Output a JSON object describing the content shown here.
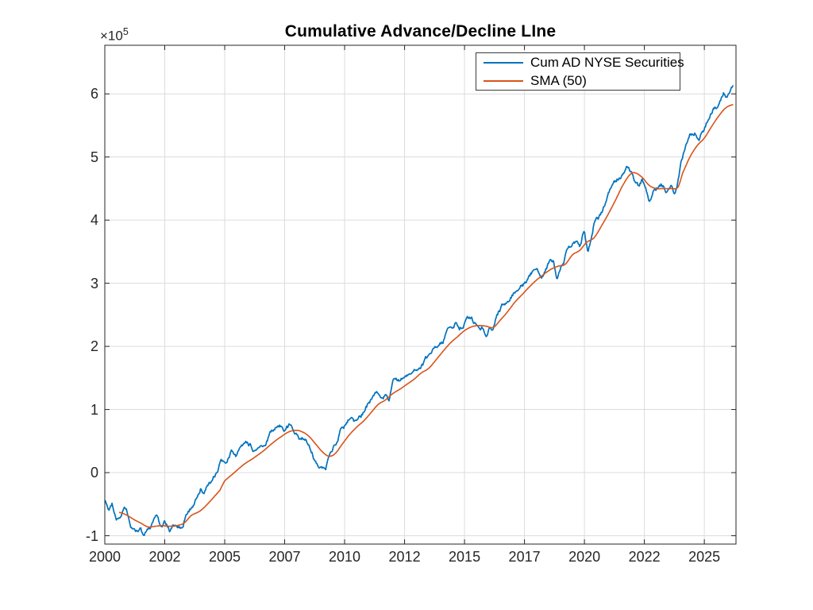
{
  "figure": {
    "background": "#ffffff",
    "axis_color": "#262626",
    "grid_color": "#dcdcdc",
    "y_exponent_base": "×10",
    "y_exponent_power": "5"
  },
  "legend": {
    "entries": [
      {
        "label": "Cum AD NYSE Securities",
        "color": "#0072BD"
      },
      {
        "label": "SMA (50)",
        "color": "#D95319"
      }
    ]
  },
  "chart_data": {
    "type": "line",
    "title": "Cumulative Advance/Decline LIne",
    "xlabel": "",
    "ylabel": "",
    "y_units": "×10^5",
    "grid": true,
    "legend_position": "northeast-inside",
    "xlim": [
      2000,
      2026.32
    ],
    "ylim": [
      -1.132,
      6.77
    ],
    "x_ticks": [
      2000,
      2002.5,
      2005,
      2007.5,
      2010,
      2012.5,
      2015,
      2017.5,
      2020,
      2022.5,
      2025
    ],
    "x_tick_labels": [
      "2000",
      "2002",
      "2005",
      "2007",
      "2010",
      "2012",
      "2015",
      "2017",
      "2020",
      "2022",
      "2025"
    ],
    "y_ticks": [
      -1,
      0,
      1,
      2,
      3,
      4,
      5,
      6
    ],
    "y_tick_labels": [
      "-1",
      "0",
      "1",
      "2",
      "3",
      "4",
      "5",
      "6"
    ],
    "series": [
      {
        "name": "Cum AD NYSE Securities",
        "color": "#0072BD",
        "line_width": 1.7,
        "smooth": false,
        "noise_amplitude": 0.03,
        "x": [
          2000.0,
          2000.15,
          2000.3,
          2000.5,
          2000.7,
          2000.9,
          2001.1,
          2001.3,
          2001.5,
          2001.65,
          2001.8,
          2002.0,
          2002.15,
          2002.3,
          2002.5,
          2002.7,
          2002.9,
          2003.1,
          2003.25,
          2003.4,
          2003.6,
          2003.8,
          2004.0,
          2004.15,
          2004.35,
          2004.6,
          2004.85,
          2005.1,
          2005.3,
          2005.5,
          2005.65,
          2005.85,
          2006.1,
          2006.3,
          2006.5,
          2006.7,
          2006.9,
          2007.1,
          2007.3,
          2007.5,
          2007.7,
          2007.9,
          2008.1,
          2008.3,
          2008.5,
          2008.7,
          2008.9,
          2009.05,
          2009.2,
          2009.35,
          2009.5,
          2009.7,
          2009.85,
          2010.0,
          2010.2,
          2010.45,
          2010.7,
          2010.9,
          2011.1,
          2011.3,
          2011.5,
          2011.7,
          2011.85,
          2012.05,
          2012.3,
          2012.5,
          2012.8,
          2013.1,
          2013.3,
          2013.5,
          2013.7,
          2013.9,
          2014.1,
          2014.3,
          2014.45,
          2014.65,
          2014.8,
          2015.0,
          2015.2,
          2015.4,
          2015.6,
          2015.75,
          2015.9,
          2016.05,
          2016.15,
          2016.35,
          2016.6,
          2016.8,
          2017.0,
          2017.2,
          2017.5,
          2017.8,
          2018.0,
          2018.2,
          2018.45,
          2018.7,
          2018.85,
          2019.0,
          2019.2,
          2019.35,
          2019.5,
          2019.65,
          2019.8,
          2020.0,
          2020.15,
          2020.25,
          2020.4,
          2020.6,
          2020.8,
          2021.0,
          2021.2,
          2021.4,
          2021.6,
          2021.8,
          2021.95,
          2022.1,
          2022.25,
          2022.4,
          2022.55,
          2022.7,
          2022.85,
          2023.0,
          2023.2,
          2023.4,
          2023.6,
          2023.75,
          2023.9,
          2024.05,
          2024.2,
          2024.4,
          2024.6,
          2024.8,
          2025.0,
          2025.2,
          2025.4,
          2025.6,
          2025.8,
          2025.95,
          2026.1,
          2026.2
        ],
        "y": [
          -0.44,
          -0.58,
          -0.52,
          -0.73,
          -0.62,
          -0.58,
          -0.82,
          -0.97,
          -0.85,
          -1.0,
          -0.92,
          -0.8,
          -0.72,
          -0.86,
          -0.8,
          -0.92,
          -0.82,
          -0.88,
          -0.85,
          -0.62,
          -0.52,
          -0.42,
          -0.22,
          -0.3,
          -0.18,
          -0.02,
          0.18,
          0.12,
          0.31,
          0.26,
          0.37,
          0.42,
          0.39,
          0.3,
          0.35,
          0.48,
          0.62,
          0.7,
          0.78,
          0.68,
          0.74,
          0.62,
          0.52,
          0.58,
          0.45,
          0.28,
          0.18,
          0.06,
          0.05,
          0.22,
          0.36,
          0.52,
          0.68,
          0.73,
          0.9,
          0.8,
          0.93,
          1.05,
          1.15,
          1.3,
          1.2,
          1.26,
          1.18,
          1.47,
          1.43,
          1.51,
          1.6,
          1.72,
          1.78,
          1.82,
          1.9,
          1.95,
          2.08,
          2.29,
          2.22,
          2.33,
          2.27,
          2.39,
          2.43,
          2.35,
          2.36,
          2.33,
          2.23,
          2.33,
          2.23,
          2.52,
          2.67,
          2.74,
          2.84,
          2.9,
          3.02,
          3.15,
          3.21,
          3.17,
          3.31,
          3.38,
          3.11,
          3.22,
          3.42,
          3.53,
          3.6,
          3.65,
          3.58,
          3.84,
          3.48,
          3.65,
          3.95,
          4.05,
          4.2,
          4.4,
          4.55,
          4.65,
          4.78,
          4.85,
          4.78,
          4.62,
          4.55,
          4.65,
          4.48,
          4.3,
          4.45,
          4.52,
          4.58,
          4.48,
          4.55,
          4.42,
          4.62,
          4.95,
          5.12,
          5.35,
          5.42,
          5.31,
          5.45,
          5.65,
          5.78,
          5.86,
          6.0,
          5.95,
          6.05,
          6.12
        ]
      },
      {
        "name": "SMA (50)",
        "color": "#D95319",
        "line_width": 1.6,
        "smooth": true,
        "noise_amplitude": 0,
        "x": [
          2000.6,
          2000.9,
          2001.2,
          2001.5,
          2001.8,
          2002.1,
          2002.4,
          2002.7,
          2003.0,
          2003.3,
          2003.6,
          2004.0,
          2004.4,
          2004.8,
          2005.0,
          2005.4,
          2005.8,
          2006.2,
          2006.6,
          2007.0,
          2007.4,
          2007.7,
          2008.0,
          2008.2,
          2008.5,
          2008.8,
          2009.1,
          2009.35,
          2009.6,
          2009.9,
          2010.2,
          2010.5,
          2010.8,
          2011.1,
          2011.4,
          2011.7,
          2012.0,
          2012.3,
          2012.6,
          2012.9,
          2013.2,
          2013.5,
          2013.8,
          2014.1,
          2014.4,
          2014.7,
          2015.0,
          2015.3,
          2015.6,
          2015.9,
          2016.2,
          2016.5,
          2016.8,
          2017.1,
          2017.4,
          2017.7,
          2018.0,
          2018.3,
          2018.6,
          2018.9,
          2019.2,
          2019.5,
          2019.8,
          2020.1,
          2020.4,
          2020.7,
          2021.0,
          2021.3,
          2021.6,
          2021.9,
          2022.1,
          2022.4,
          2022.7,
          2023.0,
          2023.3,
          2023.6,
          2023.9,
          2024.1,
          2024.4,
          2024.7,
          2025.0,
          2025.3,
          2025.6,
          2025.9,
          2026.2
        ],
        "y": [
          -0.63,
          -0.67,
          -0.74,
          -0.8,
          -0.86,
          -0.85,
          -0.84,
          -0.85,
          -0.84,
          -0.8,
          -0.68,
          -0.6,
          -0.45,
          -0.28,
          -0.13,
          0.0,
          0.13,
          0.23,
          0.34,
          0.47,
          0.58,
          0.65,
          0.67,
          0.65,
          0.58,
          0.45,
          0.32,
          0.26,
          0.3,
          0.45,
          0.6,
          0.72,
          0.82,
          0.95,
          1.08,
          1.15,
          1.25,
          1.32,
          1.4,
          1.48,
          1.58,
          1.65,
          1.78,
          1.92,
          2.05,
          2.15,
          2.25,
          2.31,
          2.33,
          2.32,
          2.3,
          2.42,
          2.55,
          2.7,
          2.82,
          2.94,
          3.05,
          3.14,
          3.22,
          3.27,
          3.3,
          3.45,
          3.52,
          3.65,
          3.72,
          3.9,
          4.1,
          4.32,
          4.55,
          4.72,
          4.75,
          4.68,
          4.55,
          4.5,
          4.5,
          4.5,
          4.52,
          4.75,
          5.0,
          5.18,
          5.3,
          5.48,
          5.65,
          5.78,
          5.83
        ]
      }
    ]
  }
}
